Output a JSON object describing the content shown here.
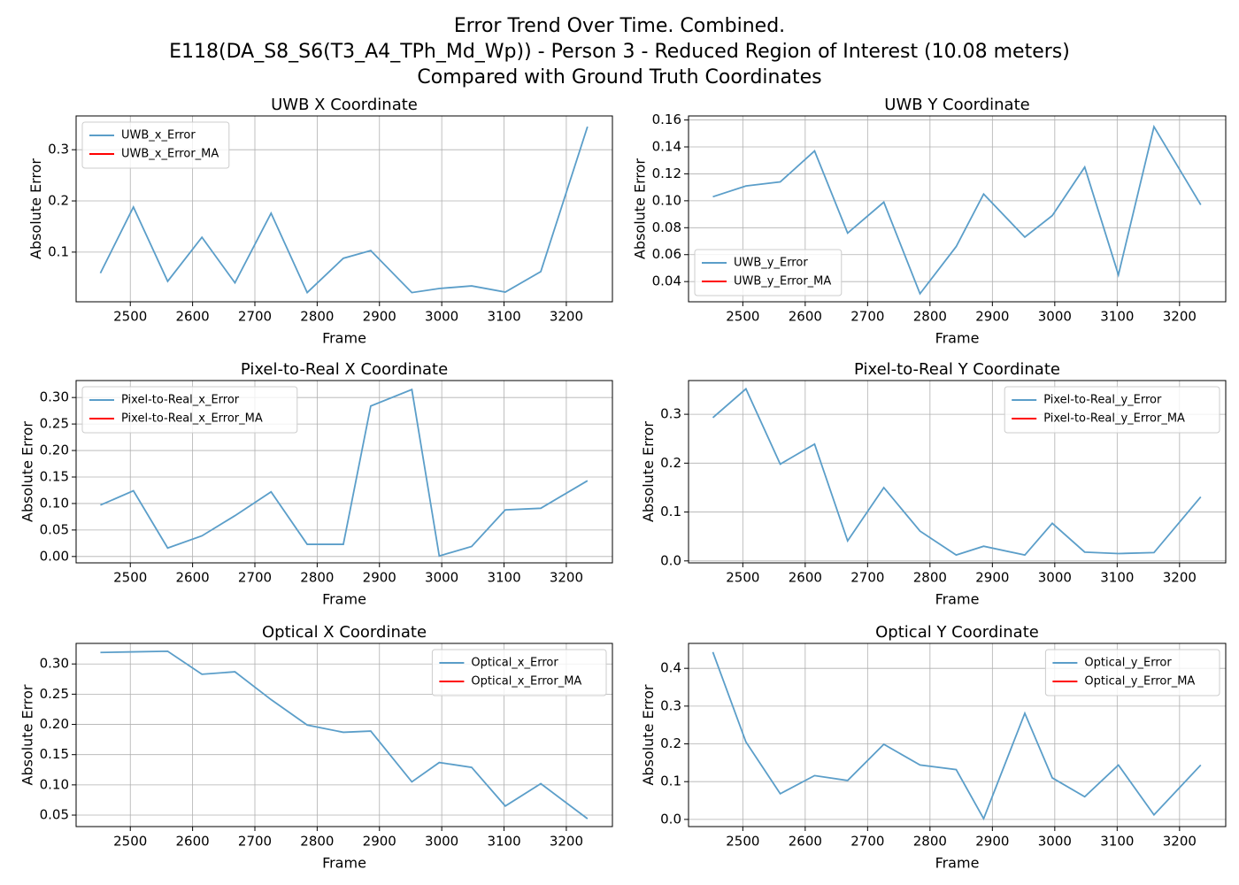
{
  "title": [
    "Error Trend Over Time. Combined.",
    "E118(DA_S8_S6(T3_A4_TPh_Md_Wp)) - Person 3 - Reduced Region of Interest (10.08 meters)",
    "Compared with Ground Truth Coordinates"
  ],
  "chart_data": [
    {
      "type": "line",
      "title": "UWB X Coordinate",
      "x_label": "Frame",
      "y_label": "Absolute Error",
      "x": [
        2452,
        2505,
        2560,
        2615,
        2668,
        2726,
        2784,
        2842,
        2886,
        2952,
        2996,
        3048,
        3102,
        3159,
        3234
      ],
      "series": [
        {
          "name": "UWB_x_Error",
          "color": "#5b9ec9",
          "values": [
            0.059,
            0.188,
            0.043,
            0.129,
            0.04,
            0.176,
            0.021,
            0.088,
            0.103,
            0.021,
            0.029,
            0.034,
            0.022,
            0.062,
            0.345
          ]
        },
        {
          "name": "UWB_x_Error_MA",
          "color": "#ff0000",
          "values": [
            null,
            null,
            null,
            null,
            null,
            null,
            null,
            null,
            null,
            null,
            null,
            null,
            null,
            null,
            null
          ]
        }
      ],
      "xlim": [
        2413,
        3274
      ],
      "xticks": [
        2500,
        2600,
        2700,
        2800,
        2900,
        3000,
        3100,
        3200
      ],
      "ylim": [
        0.003,
        0.366
      ],
      "yticks": [
        0.1,
        0.2,
        0.3
      ],
      "grid": true,
      "legend": "upper left"
    },
    {
      "type": "line",
      "title": "UWB Y Coordinate",
      "x_label": "Frame",
      "y_label": "Absolute Error",
      "x": [
        2452,
        2505,
        2560,
        2615,
        2668,
        2726,
        2784,
        2842,
        2886,
        2952,
        2996,
        3048,
        3102,
        3159,
        3234
      ],
      "series": [
        {
          "name": "UWB_y_Error",
          "color": "#5b9ec9",
          "values": [
            0.103,
            0.111,
            0.114,
            0.137,
            0.076,
            0.099,
            0.031,
            0.066,
            0.105,
            0.073,
            0.089,
            0.125,
            0.045,
            0.155,
            0.097
          ]
        },
        {
          "name": "UWB_y_Error_MA",
          "color": "#ff0000",
          "values": [
            null,
            null,
            null,
            null,
            null,
            null,
            null,
            null,
            null,
            null,
            null,
            null,
            null,
            null,
            null
          ]
        }
      ],
      "xlim": [
        2413,
        3274
      ],
      "xticks": [
        2500,
        2600,
        2700,
        2800,
        2900,
        3000,
        3100,
        3200
      ],
      "ylim": [
        0.025,
        0.163
      ],
      "yticks": [
        0.04,
        0.06,
        0.08,
        {
          "value": 0.1,
          "label": "0.10"
        },
        0.12,
        0.14,
        0.16
      ],
      "grid": true,
      "legend": "lower left"
    },
    {
      "type": "line",
      "title": "Pixel-to-Real X Coordinate",
      "x_label": "Frame",
      "y_label": "Absolute Error",
      "x": [
        2452,
        2505,
        2560,
        2615,
        2668,
        2726,
        2784,
        2842,
        2886,
        2952,
        2996,
        3048,
        3102,
        3159,
        3234
      ],
      "series": [
        {
          "name": "Pixel-to-Real_x_Error",
          "color": "#5b9ec9",
          "values": [
            0.097,
            0.124,
            0.016,
            0.039,
            0.077,
            0.122,
            0.023,
            0.023,
            0.284,
            0.315,
            0.001,
            0.019,
            0.088,
            0.091,
            0.143
          ]
        },
        {
          "name": "Pixel-to-Real_x_Error_MA",
          "color": "#ff0000",
          "values": [
            null,
            null,
            null,
            null,
            null,
            null,
            null,
            null,
            null,
            null,
            null,
            null,
            null,
            null,
            null
          ]
        }
      ],
      "xlim": [
        2413,
        3274
      ],
      "xticks": [
        2500,
        2600,
        2700,
        2800,
        2900,
        3000,
        3100,
        3200
      ],
      "ylim": [
        -0.012,
        0.332
      ],
      "yticks": [
        {
          "value": 0,
          "label": "0.00"
        },
        0.05,
        {
          "value": 0.1,
          "label": "0.10"
        },
        0.15,
        {
          "value": 0.2,
          "label": "0.20"
        },
        0.25,
        {
          "value": 0.3,
          "label": "0.30"
        }
      ],
      "grid": true,
      "legend": "upper left"
    },
    {
      "type": "line",
      "title": "Pixel-to-Real Y Coordinate",
      "x_label": "Frame",
      "y_label": "Absolute Error",
      "x": [
        2452,
        2505,
        2560,
        2615,
        2668,
        2726,
        2784,
        2842,
        2886,
        2952,
        2996,
        3048,
        3102,
        3159,
        3234
      ],
      "series": [
        {
          "name": "Pixel-to-Real_y_Error",
          "color": "#5b9ec9",
          "values": [
            0.293,
            0.352,
            0.198,
            0.239,
            0.041,
            0.15,
            0.061,
            0.012,
            0.03,
            0.012,
            0.077,
            0.018,
            0.015,
            0.017,
            0.131
          ]
        },
        {
          "name": "Pixel-to-Real_y_Error_MA",
          "color": "#ff0000",
          "values": [
            null,
            null,
            null,
            null,
            null,
            null,
            null,
            null,
            null,
            null,
            null,
            null,
            null,
            null,
            null
          ]
        }
      ],
      "xlim": [
        2413,
        3274
      ],
      "xticks": [
        2500,
        2600,
        2700,
        2800,
        2900,
        3000,
        3100,
        3200
      ],
      "ylim": [
        -0.004,
        0.369
      ],
      "yticks": [
        {
          "value": 0,
          "label": "0.0"
        },
        0.1,
        0.2,
        0.3
      ],
      "grid": true,
      "legend": "upper right"
    },
    {
      "type": "line",
      "title": "Optical X Coordinate",
      "x_label": "Frame",
      "y_label": "Absolute Error",
      "x": [
        2452,
        2505,
        2560,
        2615,
        2668,
        2726,
        2784,
        2842,
        2886,
        2952,
        2996,
        3048,
        3102,
        3159,
        3234
      ],
      "series": [
        {
          "name": "Optical_x_Error",
          "color": "#5b9ec9",
          "values": [
            0.319,
            0.32,
            0.321,
            0.283,
            0.287,
            0.241,
            0.199,
            0.187,
            0.189,
            0.105,
            0.137,
            0.129,
            0.065,
            0.102,
            0.044
          ]
        },
        {
          "name": "Optical_x_Error_MA",
          "color": "#ff0000",
          "values": [
            null,
            null,
            null,
            null,
            null,
            null,
            null,
            null,
            null,
            null,
            null,
            null,
            null,
            null,
            null
          ]
        }
      ],
      "xlim": [
        2413,
        3274
      ],
      "xticks": [
        2500,
        2600,
        2700,
        2800,
        2900,
        3000,
        3100,
        3200
      ],
      "ylim": [
        0.031,
        0.334
      ],
      "yticks": [
        0.05,
        {
          "value": 0.1,
          "label": "0.10"
        },
        0.15,
        {
          "value": 0.2,
          "label": "0.20"
        },
        0.25,
        {
          "value": 0.3,
          "label": "0.30"
        }
      ],
      "grid": true,
      "legend": "upper right"
    },
    {
      "type": "line",
      "title": "Optical Y Coordinate",
      "x_label": "Frame",
      "y_label": "Absolute Error",
      "x": [
        2452,
        2505,
        2560,
        2615,
        2668,
        2726,
        2784,
        2842,
        2886,
        2952,
        2996,
        3048,
        3102,
        3159,
        3234
      ],
      "series": [
        {
          "name": "Optical_y_Error",
          "color": "#5b9ec9",
          "values": [
            0.443,
            0.205,
            0.068,
            0.116,
            0.103,
            0.199,
            0.144,
            0.132,
            0.002,
            0.281,
            0.11,
            0.06,
            0.144,
            0.012,
            0.144
          ]
        },
        {
          "name": "Optical_y_Error_MA",
          "color": "#ff0000",
          "values": [
            null,
            null,
            null,
            null,
            null,
            null,
            null,
            null,
            null,
            null,
            null,
            null,
            null,
            null,
            null
          ]
        }
      ],
      "xlim": [
        2413,
        3274
      ],
      "xticks": [
        2500,
        2600,
        2700,
        2800,
        2900,
        3000,
        3100,
        3200
      ],
      "ylim": [
        -0.019,
        0.466
      ],
      "yticks": [
        {
          "value": 0,
          "label": "0.0"
        },
        0.1,
        0.2,
        0.3,
        0.4
      ],
      "grid": true,
      "legend": "upper right"
    }
  ]
}
